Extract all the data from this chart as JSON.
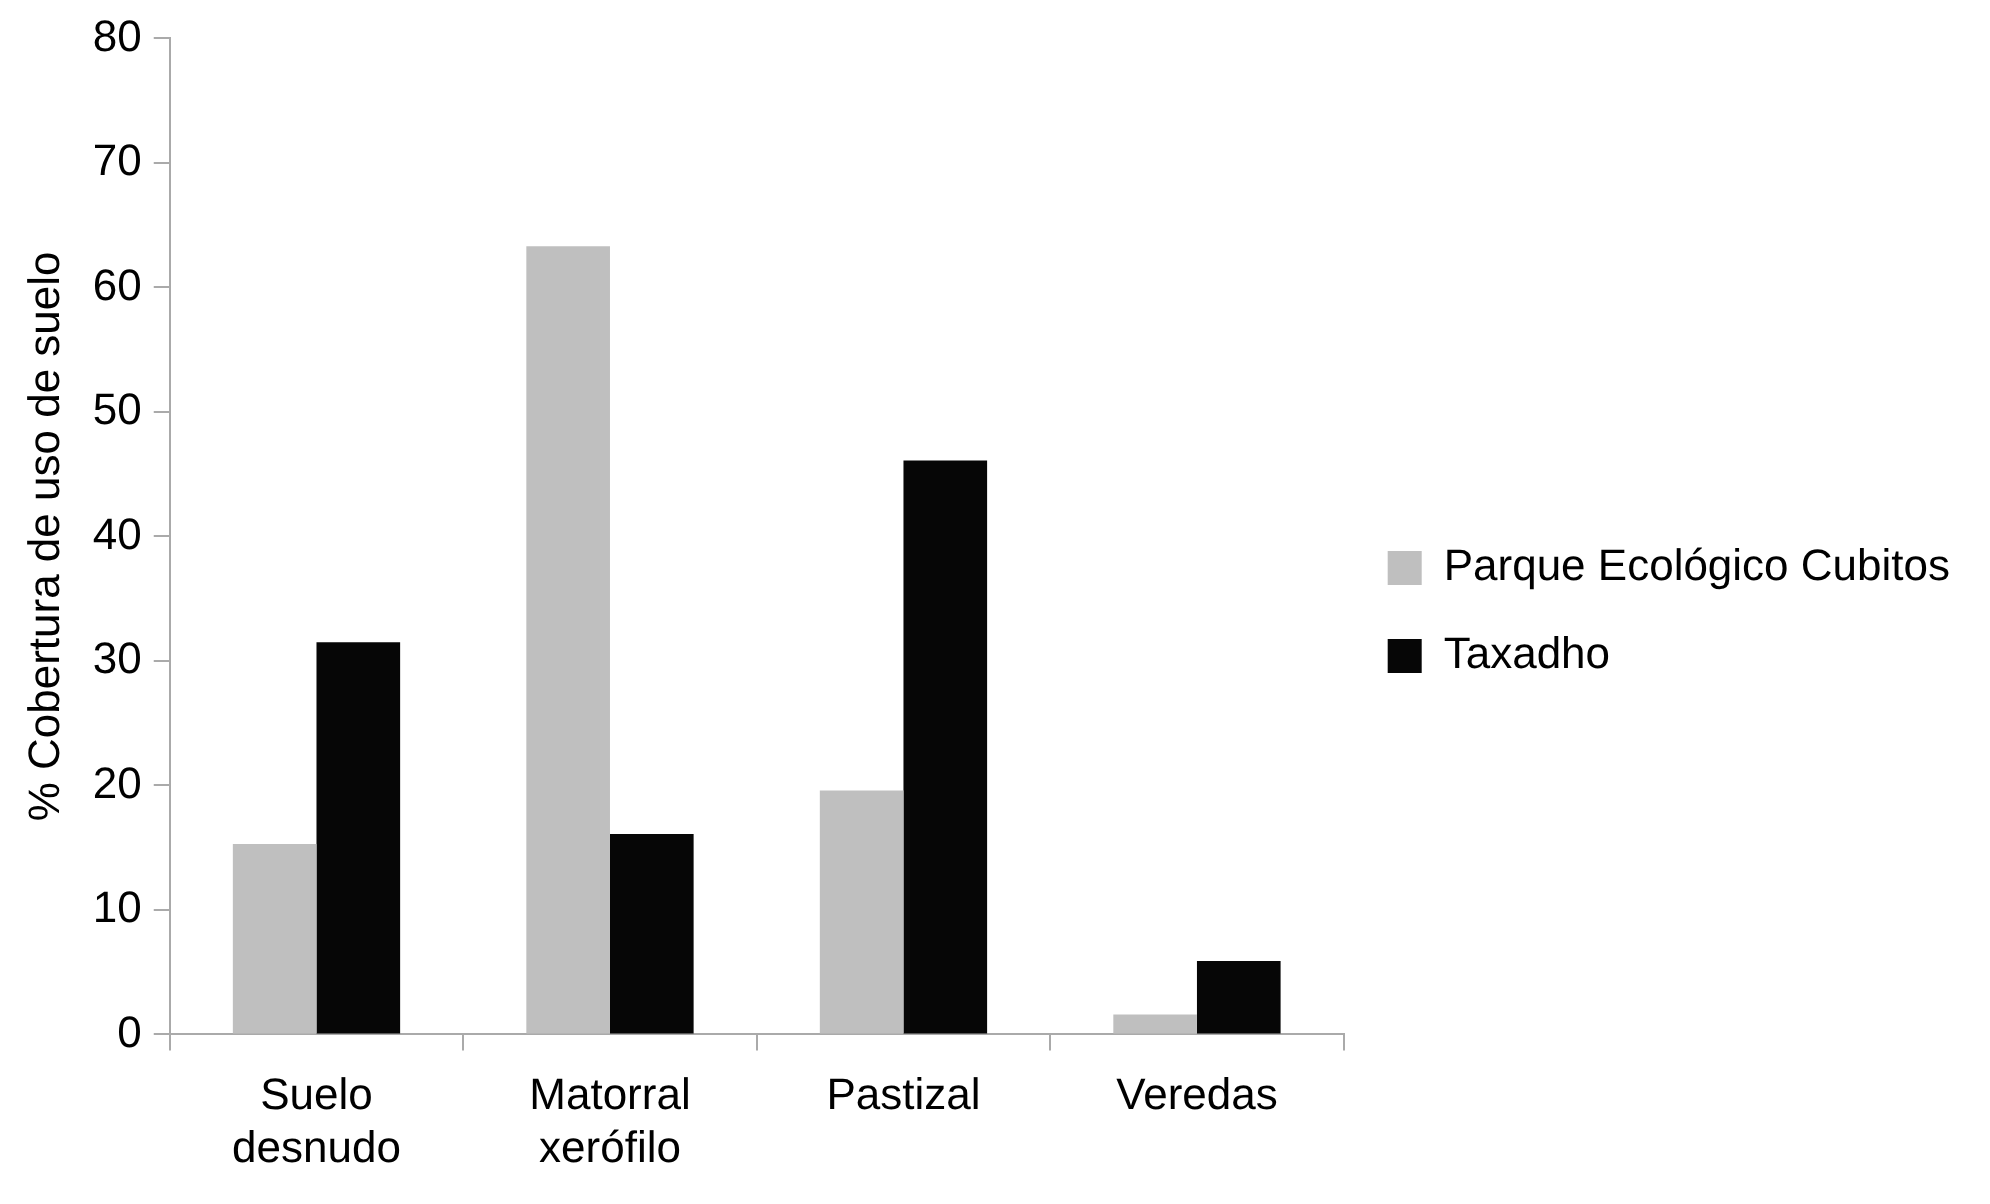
{
  "chart_data": {
    "type": "bar",
    "ylabel": "% Cobertura de uso de suelo",
    "categories": [
      "Suelo desnudo",
      "Matorral xerófilo",
      "Pastizal",
      "Veredas"
    ],
    "series": [
      {
        "name": "Parque Ecológico Cubitos",
        "color": "#bfbfbf",
        "values": [
          15.3,
          63.3,
          19.6,
          1.6
        ]
      },
      {
        "name": "Taxadho",
        "color": "#060606",
        "values": [
          31.5,
          16.1,
          46.1,
          5.9
        ]
      }
    ],
    "ylim": [
      0,
      80
    ],
    "yticks": [
      0,
      10,
      20,
      30,
      40,
      50,
      60,
      70,
      80
    ],
    "grid": false,
    "legend": "right"
  }
}
